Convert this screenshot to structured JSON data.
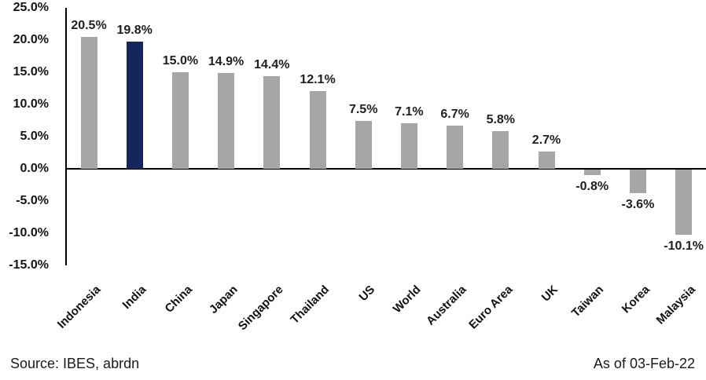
{
  "chart_data": {
    "type": "bar",
    "title": "",
    "xlabel": "",
    "ylabel": "",
    "categories": [
      "Indonesia",
      "India",
      "China",
      "Japan",
      "Singapore",
      "Thailand",
      "US",
      "World",
      "Australia",
      "Euro Area",
      "UK",
      "Taiwan",
      "Korea",
      "Malaysia"
    ],
    "values": [
      20.5,
      19.8,
      15.0,
      14.9,
      14.4,
      12.1,
      7.5,
      7.1,
      6.7,
      5.8,
      2.7,
      -0.8,
      -3.6,
      -10.1
    ],
    "value_labels": [
      "20.5%",
      "19.8%",
      "15.0%",
      "14.9%",
      "14.4%",
      "12.1%",
      "7.5%",
      "7.1%",
      "6.7%",
      "5.8%",
      "2.7%",
      "-0.8%",
      "-3.6%",
      "-10.1%"
    ],
    "highlight_index": 1,
    "bar_color": "#a6a6a6",
    "highlight_color": "#14265c",
    "axis_color": "#000000",
    "y_ticks": [
      {
        "label": "25.0%",
        "value": 25
      },
      {
        "label": "20.0%",
        "value": 20
      },
      {
        "label": "15.0%",
        "value": 15
      },
      {
        "label": "10.0%",
        "value": 10
      },
      {
        "label": "5.0%",
        "value": 5
      },
      {
        "label": "0.0%",
        "value": 0
      },
      {
        "label": "-5.0%",
        "value": -5
      },
      {
        "label": "-10.0%",
        "value": -10
      },
      {
        "label": "-15.0%",
        "value": -15
      }
    ],
    "ylim": [
      -15,
      25
    ],
    "grid": false,
    "legend": false
  },
  "footer": {
    "source": "Source: IBES, abrdn",
    "as_of": "As of 03-Feb-22"
  }
}
